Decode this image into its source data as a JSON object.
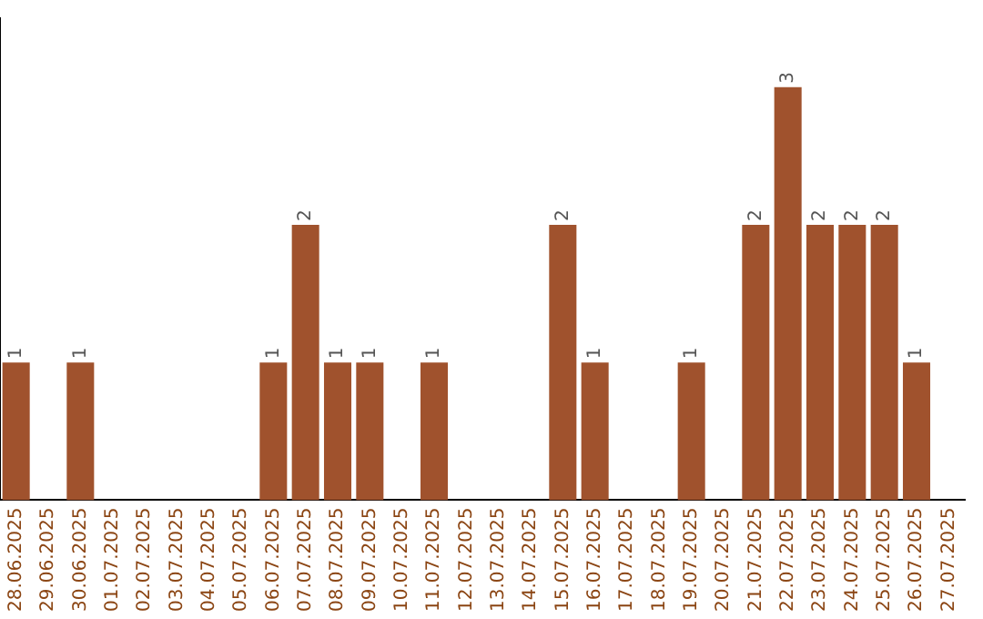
{
  "chart_data": {
    "type": "bar",
    "categories": [
      "28.06.2025",
      "29.06.2025",
      "30.06.2025",
      "01.07.2025",
      "02.07.2025",
      "03.07.2025",
      "04.07.2025",
      "05.07.2025",
      "06.07.2025",
      "07.07.2025",
      "08.07.2025",
      "09.07.2025",
      "10.07.2025",
      "11.07.2025",
      "12.07.2025",
      "13.07.2025",
      "14.07.2025",
      "15.07.2025",
      "16.07.2025",
      "17.07.2025",
      "18.07.2025",
      "19.07.2025",
      "20.07.2025",
      "21.07.2025",
      "22.07.2025",
      "23.07.2025",
      "24.07.2025",
      "25.07.2025",
      "26.07.2025",
      "27.07.2025"
    ],
    "values": [
      1,
      0,
      1,
      0,
      0,
      0,
      0,
      0,
      1,
      2,
      1,
      1,
      0,
      1,
      0,
      0,
      0,
      2,
      1,
      0,
      0,
      1,
      0,
      2,
      3,
      2,
      2,
      2,
      1,
      0
    ],
    "value_labels": [
      "1",
      null,
      "1",
      null,
      null,
      null,
      null,
      null,
      "1",
      "2",
      "1",
      "1",
      null,
      "1",
      null,
      null,
      null,
      "2",
      "1",
      null,
      null,
      "1",
      null,
      "2",
      "3",
      "2",
      "2",
      "2",
      "1",
      null
    ],
    "color": "#a0522d",
    "tick_labels": "x",
    "grid": false,
    "legend": false
  }
}
